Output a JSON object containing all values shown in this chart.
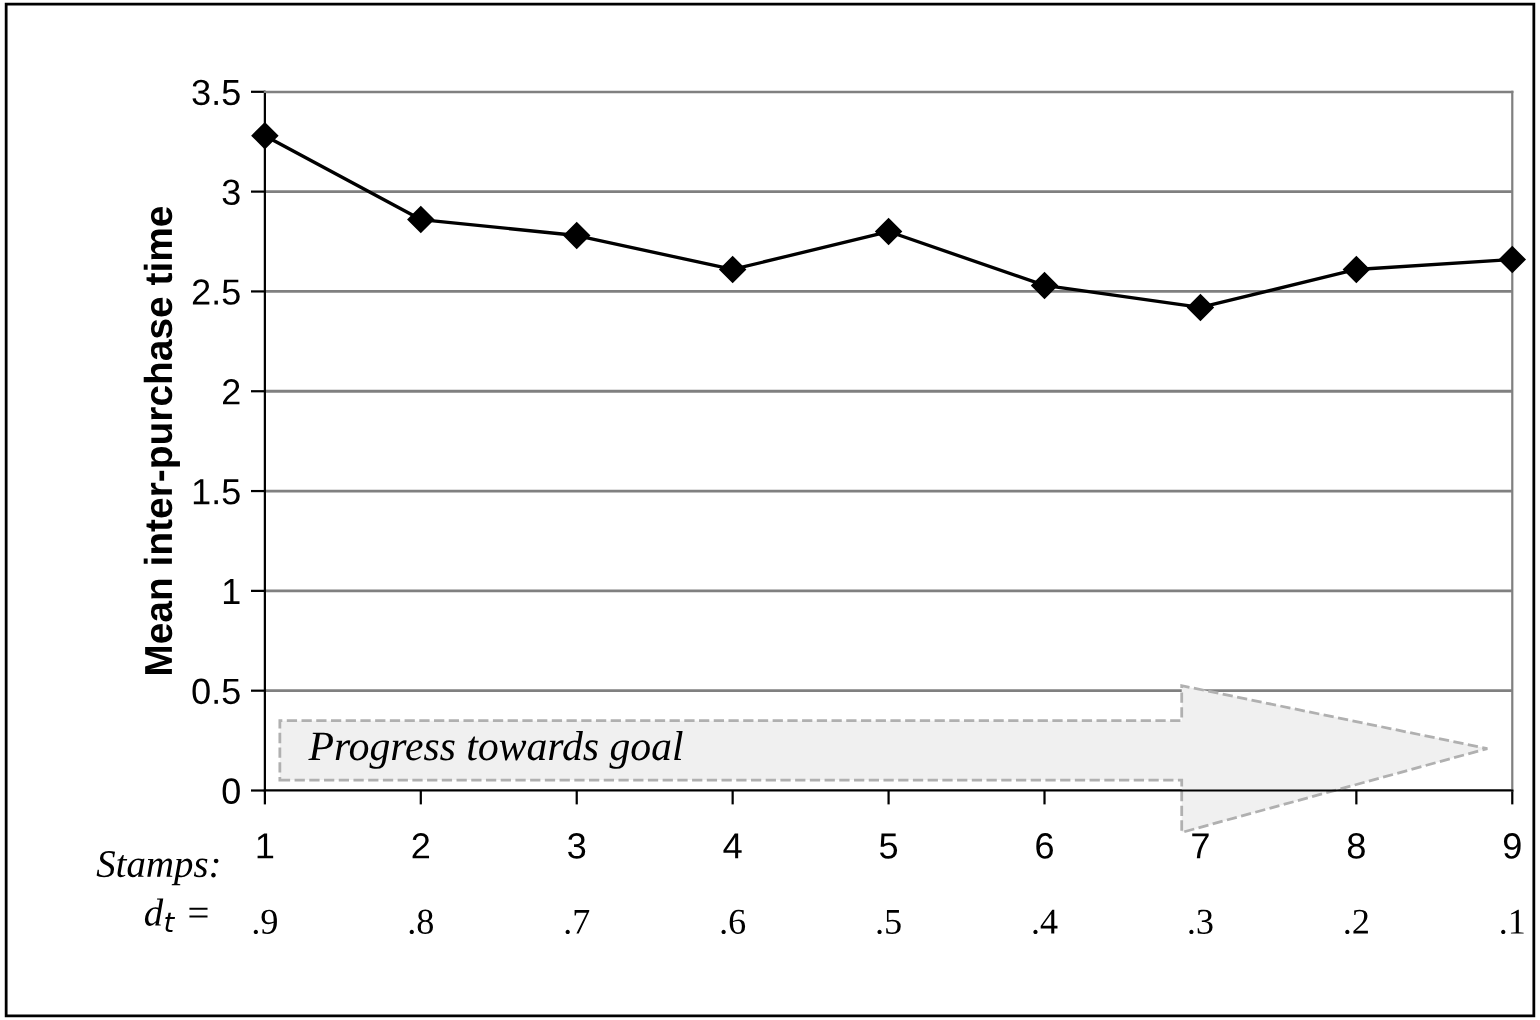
{
  "chart_data": {
    "type": "line",
    "ylabel": "Mean inter-purchase time",
    "xlabel": "Stamps:",
    "x2label": "d$_{t}$ =",
    "x": [
      1,
      2,
      3,
      4,
      5,
      6,
      7,
      8,
      9
    ],
    "series": [
      {
        "color": "#000000",
        "values": [
          3.28,
          2.86,
          2.78,
          2.61,
          2.8,
          2.53,
          2.42,
          2.61,
          2.66
        ]
      }
    ],
    "xlim": [
      1,
      9
    ],
    "xticks": [
      1,
      2,
      3,
      4,
      5,
      6,
      7,
      8,
      9
    ],
    "x2lim": [
      0.9,
      0.1
    ],
    "x2ticks": [
      {
        "value": 0.9,
        "label": ".9"
      },
      {
        "value": 0.8,
        "label": ".8"
      },
      {
        "value": 0.7,
        "label": ".7"
      },
      {
        "value": 0.6,
        "label": ".6"
      },
      {
        "value": 0.5,
        "label": ".5"
      },
      {
        "value": 0.4,
        "label": ".4"
      },
      {
        "value": 0.3,
        "label": ".3"
      },
      {
        "value": 0.2,
        "label": ".2"
      },
      {
        "value": 0.1,
        "label": ".1"
      }
    ],
    "ylim": [
      0,
      3.5
    ],
    "yticks": [
      0,
      0.5,
      1,
      1.5,
      2,
      2.5,
      3,
      3.5
    ],
    "grid": "y",
    "marker": "diamond",
    "line_style": "solid",
    "annotations": [
      "Progress towards goal"
    ]
  }
}
